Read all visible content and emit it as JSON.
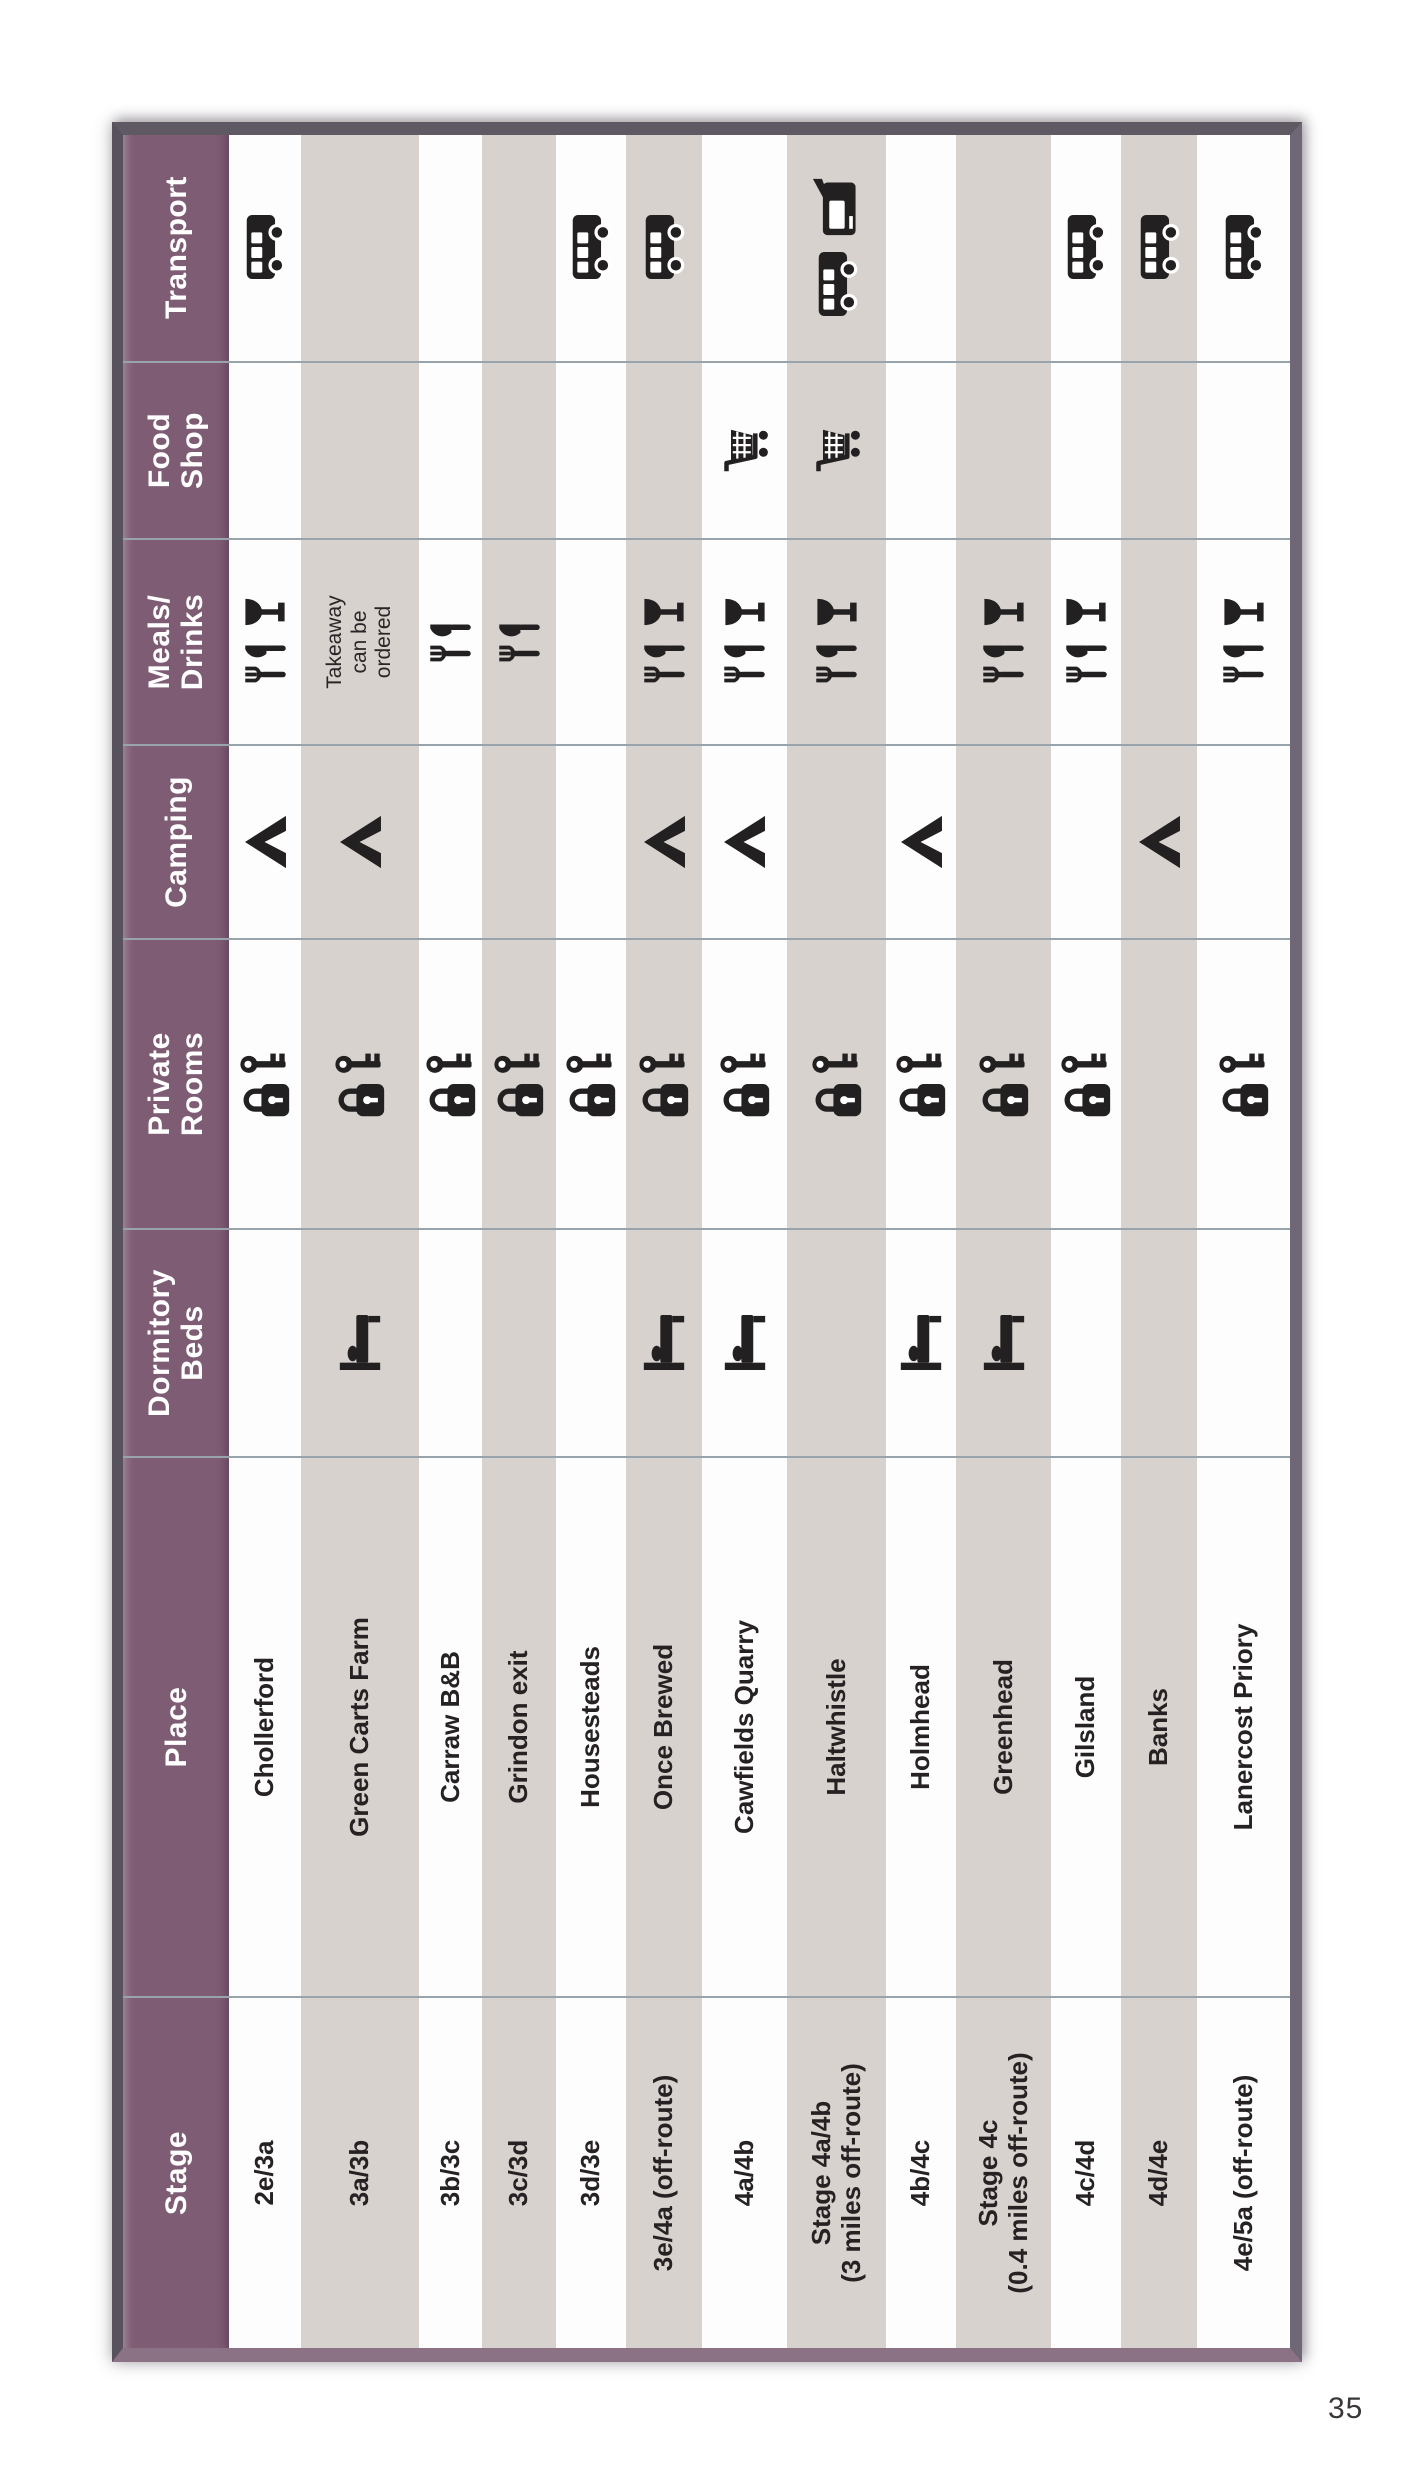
{
  "page_number": "35",
  "colors": {
    "header_purple": "#7e5c74",
    "stripe_gray": "#d8d2ce",
    "row_white": "#fdfdfd",
    "divider_line": "#98a3ab",
    "frame_dark": "#5e5963",
    "frame_bottom": "#8c7285",
    "text_black": "#262223"
  },
  "table": {
    "columns": [
      {
        "id": "stage",
        "label_lines": [
          "Stage"
        ]
      },
      {
        "id": "place",
        "label_lines": [
          "Place"
        ]
      },
      {
        "id": "dormitory",
        "label_lines": [
          "Dormitory",
          "Beds"
        ]
      },
      {
        "id": "private",
        "label_lines": [
          "Private",
          "Rooms"
        ]
      },
      {
        "id": "camping",
        "label_lines": [
          "Camping"
        ]
      },
      {
        "id": "meals",
        "label_lines": [
          "Meals/",
          "Drinks"
        ]
      },
      {
        "id": "food",
        "label_lines": [
          "Food",
          "Shop"
        ]
      },
      {
        "id": "transport",
        "label_lines": [
          "Transport"
        ]
      }
    ],
    "icon_legend": {
      "bed": "bed-icon",
      "key": "key-lock-icon",
      "tent": "tent-icon",
      "meal": "fork-knife-icon",
      "drink": "wine-glass-icon",
      "cart": "shopping-cart-icon",
      "bus": "bus-icon",
      "train": "train-icon"
    },
    "rows": [
      {
        "stage_lines": [
          "2e/3a"
        ],
        "place": "Chollerford",
        "dormitory": false,
        "private": true,
        "camping": true,
        "meals": [
          "meal",
          "drink"
        ],
        "meals_note_lines": [],
        "food": false,
        "transport": [
          "bus"
        ]
      },
      {
        "stage_lines": [
          "3a/3b"
        ],
        "place": "Green Carts Farm",
        "dormitory": true,
        "private": true,
        "camping": true,
        "meals": [],
        "meals_note_lines": [
          "Takeaway",
          "can be",
          "ordered"
        ],
        "food": false,
        "transport": []
      },
      {
        "stage_lines": [
          "3b/3c"
        ],
        "place": "Carraw B&B",
        "dormitory": false,
        "private": true,
        "camping": false,
        "meals": [
          "meal"
        ],
        "meals_note_lines": [],
        "food": false,
        "transport": []
      },
      {
        "stage_lines": [
          "3c/3d"
        ],
        "place": "Grindon exit",
        "dormitory": false,
        "private": true,
        "camping": false,
        "meals": [
          "meal"
        ],
        "meals_note_lines": [],
        "food": false,
        "transport": []
      },
      {
        "stage_lines": [
          "3d/3e"
        ],
        "place": "Housesteads",
        "dormitory": false,
        "private": true,
        "camping": false,
        "meals": [],
        "meals_note_lines": [],
        "food": false,
        "transport": [
          "bus"
        ]
      },
      {
        "stage_lines": [
          "3e/4a (off-route)"
        ],
        "place": "Once Brewed",
        "dormitory": true,
        "private": true,
        "camping": true,
        "meals": [
          "meal",
          "drink"
        ],
        "meals_note_lines": [],
        "food": false,
        "transport": [
          "bus"
        ]
      },
      {
        "stage_lines": [
          "4a/4b"
        ],
        "place": "Cawfields Quarry",
        "dormitory": true,
        "private": true,
        "camping": true,
        "meals": [
          "meal",
          "drink"
        ],
        "meals_note_lines": [],
        "food": true,
        "transport": []
      },
      {
        "stage_lines": [
          "Stage 4a/4b",
          "(3 miles off-route)"
        ],
        "place": "Haltwhistle",
        "dormitory": false,
        "private": true,
        "camping": false,
        "meals": [
          "meal",
          "drink"
        ],
        "meals_note_lines": [],
        "food": true,
        "transport": [
          "bus",
          "train"
        ]
      },
      {
        "stage_lines": [
          "4b/4c"
        ],
        "place": "Holmhead",
        "dormitory": true,
        "private": true,
        "camping": true,
        "meals": [],
        "meals_note_lines": [],
        "food": false,
        "transport": []
      },
      {
        "stage_lines": [
          "Stage 4c",
          "(0.4 miles off-route)"
        ],
        "place": "Greenhead",
        "dormitory": true,
        "private": true,
        "camping": false,
        "meals": [
          "meal",
          "drink"
        ],
        "meals_note_lines": [],
        "food": false,
        "transport": []
      },
      {
        "stage_lines": [
          "4c/4d"
        ],
        "place": "Gilsland",
        "dormitory": false,
        "private": true,
        "camping": false,
        "meals": [
          "meal",
          "drink"
        ],
        "meals_note_lines": [],
        "food": false,
        "transport": [
          "bus"
        ]
      },
      {
        "stage_lines": [
          "4d/4e"
        ],
        "place": "Banks",
        "dormitory": false,
        "private": false,
        "camping": true,
        "meals": [],
        "meals_note_lines": [],
        "food": false,
        "transport": [
          "bus"
        ]
      },
      {
        "stage_lines": [
          "4e/5a (off-route)"
        ],
        "place": "Lanercost Priory",
        "dormitory": false,
        "private": true,
        "camping": false,
        "meals": [
          "meal",
          "drink"
        ],
        "meals_note_lines": [],
        "food": false,
        "transport": [
          "bus"
        ]
      }
    ]
  }
}
